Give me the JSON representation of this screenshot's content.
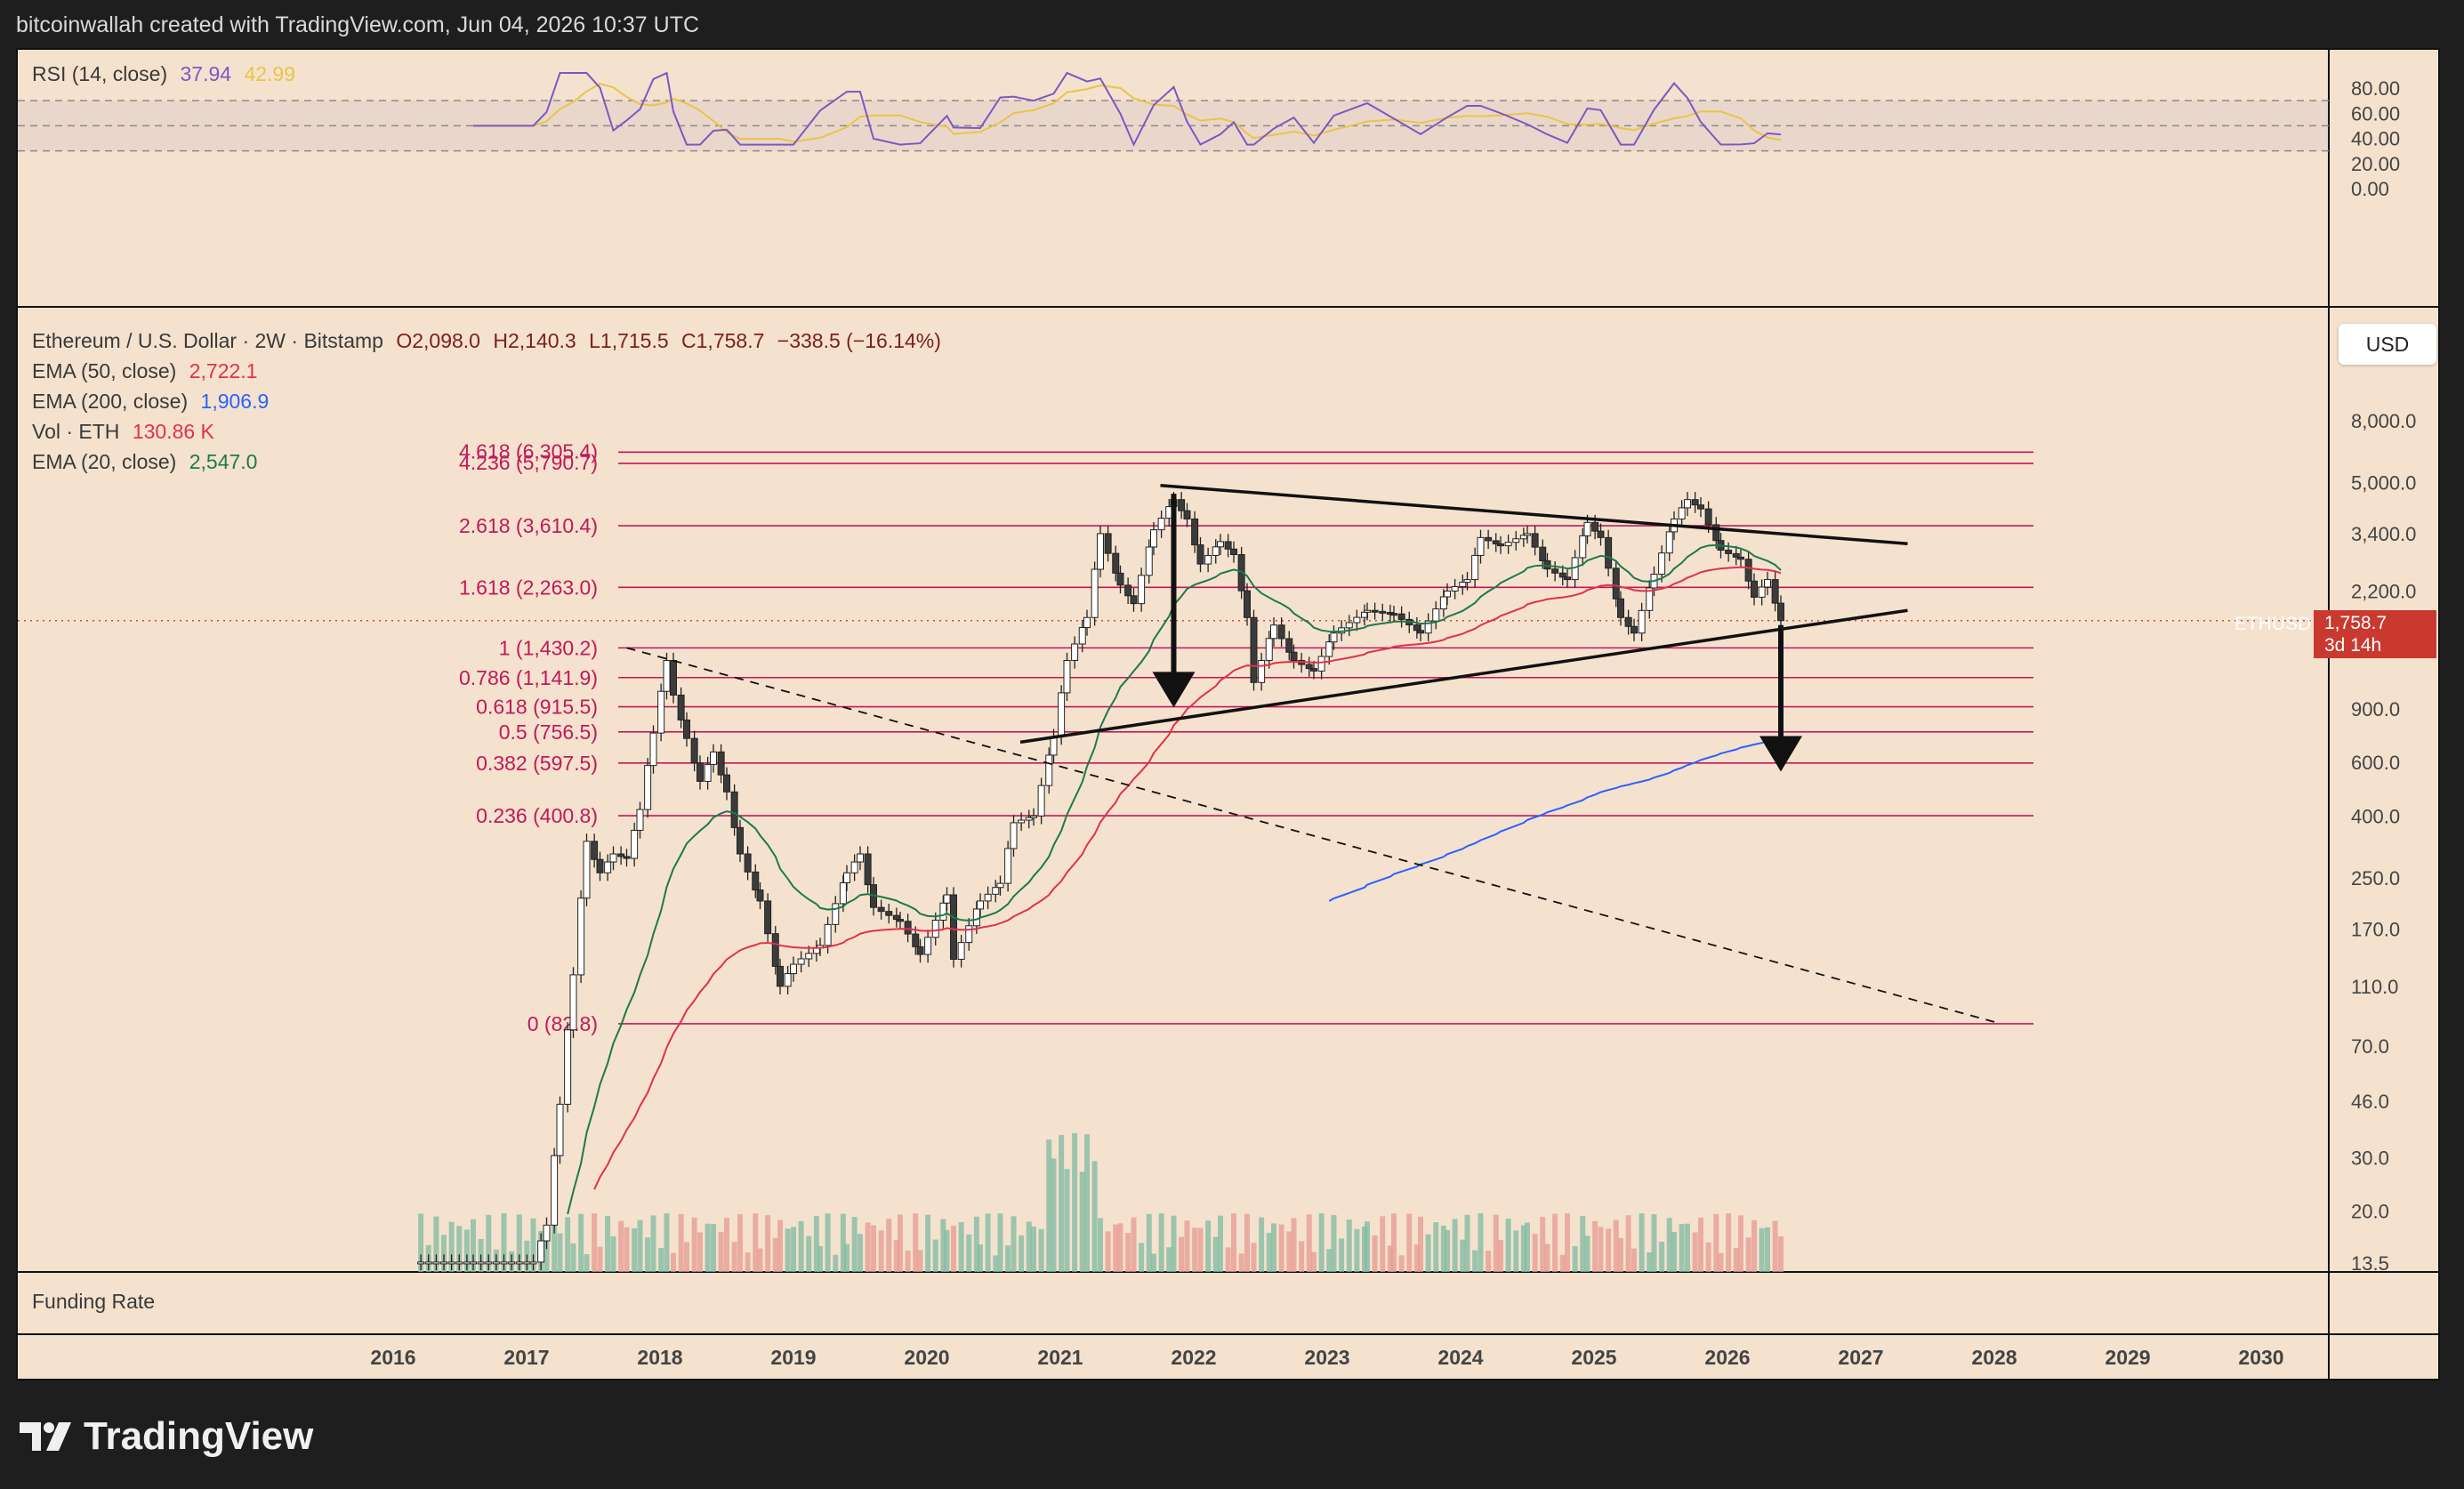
{
  "header": {
    "credit": "bitcoinwallah created with TradingView.com, Jun 04, 2026 10:37 UTC"
  },
  "rsi": {
    "label": "RSI (14, close)",
    "value1": "37.94",
    "value2": "42.99",
    "axis": [
      "80.00",
      "60.00",
      "40.00",
      "20.00",
      "0.00"
    ],
    "colors": {
      "rsi": "#7e57c2",
      "ma": "#e8c547"
    }
  },
  "legend": {
    "title": "Ethereum / U.S. Dollar · 2W · Bitstamp",
    "o": "O2,098.0",
    "h": "H2,140.3",
    "l": "L1,715.5",
    "c": "C1,758.7",
    "chg": "−338.5 (−16.14%)",
    "ema50": {
      "label": "EMA (50, close)",
      "value": "2,722.1",
      "color": "#e0314b"
    },
    "ema200": {
      "label": "EMA (200, close)",
      "value": "1,906.9",
      "color": "#2962ff"
    },
    "vol": {
      "label": "Vol · ETH",
      "value": "130.86 K",
      "color": "#e0314b"
    },
    "ema20": {
      "label": "EMA (20, close)",
      "value": "2,547.0",
      "color": "#1b7a4b"
    }
  },
  "currency_button": "USD",
  "price_tag": {
    "symbol": "ETHUSD",
    "price": "1,758.7",
    "countdown": "3d 14h"
  },
  "funding_label": "Funding Rate",
  "brand": "TradingView",
  "chart_data": {
    "type": "candlestick",
    "symbol": "ETHUSD",
    "interval": "2W",
    "y_scale": "log",
    "ylim": [
      13.5,
      8000
    ],
    "price_axis_labels": [
      "8,000.0",
      "5,000.0",
      "3,400.0",
      "2,200.0",
      "900.0",
      "600.0",
      "400.0",
      "250.0",
      "170.0",
      "110.0",
      "70.0",
      "46.0",
      "30.0",
      "20.0",
      "13.5"
    ],
    "x_tick_labels": [
      "2016",
      "2017",
      "2018",
      "2019",
      "2020",
      "2021",
      "2022",
      "2023",
      "2024",
      "2025",
      "2026",
      "2027",
      "2028",
      "2029",
      "2030"
    ],
    "fib_levels": [
      {
        "label": "4.618 (6,305.4)",
        "price": 6305.4
      },
      {
        "label": "4.236 (5,790.7)",
        "price": 5790.7
      },
      {
        "label": "2.618 (3,610.4)",
        "price": 3610.4
      },
      {
        "label": "1.618 (2,263.0)",
        "price": 2263.0
      },
      {
        "label": "1 (1,430.2)",
        "price": 1430.2
      },
      {
        "label": "0.786 (1,141.9)",
        "price": 1141.9
      },
      {
        "label": "0.618 (915.5)",
        "price": 915.5
      },
      {
        "label": "0.5 (756.5)",
        "price": 756.5
      },
      {
        "label": "0.382 (597.5)",
        "price": 597.5
      },
      {
        "label": "0.236 (400.8)",
        "price": 400.8
      },
      {
        "label": "0 (82.8)",
        "price": 82.8
      }
    ],
    "fib_color": "#c2185b",
    "last_price": 1758.7,
    "trendlines": [
      {
        "style": "solid",
        "from": [
          2021.75,
          4900
        ],
        "to": [
          2027.35,
          3150
        ]
      },
      {
        "style": "solid",
        "from": [
          2020.7,
          700
        ],
        "to": [
          2027.35,
          1900
        ]
      },
      {
        "style": "dashed",
        "from": [
          2017.75,
          1430
        ],
        "to": [
          2028.05,
          82.8
        ]
      }
    ],
    "arrows": [
      {
        "from": [
          2021.85,
          4600
        ],
        "to": [
          2021.85,
          910
        ]
      },
      {
        "from": [
          2026.4,
          1700
        ],
        "to": [
          2026.4,
          560
        ]
      }
    ],
    "price_path": [
      [
        2016.15,
        13.6
      ],
      [
        2016.6,
        13.6
      ],
      [
        2017.05,
        13.6
      ],
      [
        2017.15,
        18
      ],
      [
        2017.25,
        45
      ],
      [
        2017.35,
        120
      ],
      [
        2017.45,
        330
      ],
      [
        2017.55,
        260
      ],
      [
        2017.65,
        300
      ],
      [
        2017.75,
        290
      ],
      [
        2017.85,
        420
      ],
      [
        2017.95,
        750
      ],
      [
        2018.05,
        1300
      ],
      [
        2018.1,
        1000
      ],
      [
        2018.2,
        720
      ],
      [
        2018.3,
        520
      ],
      [
        2018.4,
        650
      ],
      [
        2018.5,
        480
      ],
      [
        2018.6,
        300
      ],
      [
        2018.75,
        210
      ],
      [
        2018.9,
        110
      ],
      [
        2019.0,
        130
      ],
      [
        2019.2,
        150
      ],
      [
        2019.4,
        260
      ],
      [
        2019.5,
        300
      ],
      [
        2019.6,
        200
      ],
      [
        2019.8,
        180
      ],
      [
        2019.95,
        140
      ],
      [
        2020.15,
        220
      ],
      [
        2020.2,
        135
      ],
      [
        2020.4,
        210
      ],
      [
        2020.55,
        240
      ],
      [
        2020.65,
        380
      ],
      [
        2020.8,
        400
      ],
      [
        2020.95,
        730
      ],
      [
        2021.05,
        1300
      ],
      [
        2021.2,
        1800
      ],
      [
        2021.3,
        3400
      ],
      [
        2021.45,
        2300
      ],
      [
        2021.55,
        2000
      ],
      [
        2021.7,
        3500
      ],
      [
        2021.85,
        4400
      ],
      [
        2021.95,
        3800
      ],
      [
        2022.05,
        2700
      ],
      [
        2022.2,
        3200
      ],
      [
        2022.3,
        2900
      ],
      [
        2022.4,
        1800
      ],
      [
        2022.45,
        1100
      ],
      [
        2022.6,
        1700
      ],
      [
        2022.75,
        1300
      ],
      [
        2022.9,
        1200
      ],
      [
        2023.05,
        1600
      ],
      [
        2023.3,
        1900
      ],
      [
        2023.5,
        1850
      ],
      [
        2023.7,
        1600
      ],
      [
        2023.9,
        2200
      ],
      [
        2024.05,
        2400
      ],
      [
        2024.15,
        3300
      ],
      [
        2024.3,
        3100
      ],
      [
        2024.5,
        3400
      ],
      [
        2024.65,
        2600
      ],
      [
        2024.8,
        2400
      ],
      [
        2024.95,
        3700
      ],
      [
        2025.05,
        3300
      ],
      [
        2025.2,
        1800
      ],
      [
        2025.3,
        1600
      ],
      [
        2025.45,
        2500
      ],
      [
        2025.6,
        3800
      ],
      [
        2025.7,
        4400
      ],
      [
        2025.8,
        4100
      ],
      [
        2025.95,
        3000
      ],
      [
        2026.1,
        2800
      ],
      [
        2026.2,
        2100
      ],
      [
        2026.3,
        2400
      ],
      [
        2026.4,
        1758.7
      ]
    ],
    "ema_colors": {
      "ema20": "#1b7a4b",
      "ema50": "#e0314b",
      "ema200": "#2962ff"
    }
  }
}
